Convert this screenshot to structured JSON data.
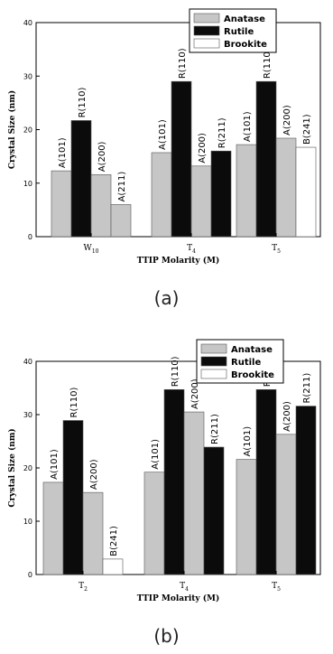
{
  "chart_data": [
    {
      "type": "bar",
      "panel_label": "(a)",
      "ylabel": "Crystal Size (nm)",
      "xlabel": "TTIP Molarity (M)",
      "ylim": [
        0,
        40
      ],
      "yticks": [
        0,
        10,
        20,
        30,
        40
      ],
      "grid": false,
      "legend_position": "top-right",
      "categories": [
        {
          "label": "W",
          "sub": "10"
        },
        {
          "label": "T",
          "sub": "4"
        },
        {
          "label": "T",
          "sub": "5"
        }
      ],
      "series": [
        {
          "name": "Anatase",
          "color": "#c6c6c6"
        },
        {
          "name": "Rutile",
          "color": "#0b0b0b"
        },
        {
          "name": "Brookite",
          "color": "#ffffff"
        }
      ],
      "bars": [
        {
          "category": 0,
          "series": 0,
          "label": "A(101)",
          "value": 12.3
        },
        {
          "category": 0,
          "series": 1,
          "label": "R(110)",
          "value": 21.7
        },
        {
          "category": 0,
          "series": 0,
          "label": "A(200)",
          "value": 11.6
        },
        {
          "category": 0,
          "series": 0,
          "label": "A(211)",
          "value": 6.0
        },
        {
          "category": 1,
          "series": 0,
          "label": "A(101)",
          "value": 15.7
        },
        {
          "category": 1,
          "series": 1,
          "label": "R(110)",
          "value": 29.0
        },
        {
          "category": 1,
          "series": 0,
          "label": "A(200)",
          "value": 13.2
        },
        {
          "category": 1,
          "series": 1,
          "label": "R(211)",
          "value": 16.0
        },
        {
          "category": 2,
          "series": 0,
          "label": "A(101)",
          "value": 17.2
        },
        {
          "category": 2,
          "series": 1,
          "label": "R(110)",
          "value": 29.0
        },
        {
          "category": 2,
          "series": 0,
          "label": "A(200)",
          "value": 18.4
        },
        {
          "category": 2,
          "series": 2,
          "label": "B(241)",
          "value": 16.7
        }
      ]
    },
    {
      "type": "bar",
      "panel_label": "(b)",
      "ylabel": "Crystal Size (nm)",
      "xlabel": "TTIP Molarity (M)",
      "ylim": [
        0,
        40
      ],
      "yticks": [
        0,
        10,
        20,
        30,
        40
      ],
      "grid": false,
      "legend_position": "top-right",
      "categories": [
        {
          "label": "T",
          "sub": "2"
        },
        {
          "label": "T",
          "sub": "4"
        },
        {
          "label": "T",
          "sub": "5"
        }
      ],
      "series": [
        {
          "name": "Anatase",
          "color": "#c6c6c6"
        },
        {
          "name": "Rutile",
          "color": "#0b0b0b"
        },
        {
          "name": "Brookite",
          "color": "#ffffff"
        }
      ],
      "bars": [
        {
          "category": 0,
          "series": 0,
          "label": "A(101)",
          "value": 17.3
        },
        {
          "category": 0,
          "series": 1,
          "label": "R(110)",
          "value": 28.9
        },
        {
          "category": 0,
          "series": 0,
          "label": "A(200)",
          "value": 15.4
        },
        {
          "category": 0,
          "series": 2,
          "label": "B(241)",
          "value": 2.9
        },
        {
          "category": 1,
          "series": 0,
          "label": "A(101)",
          "value": 19.2
        },
        {
          "category": 1,
          "series": 1,
          "label": "R(110)",
          "value": 34.7
        },
        {
          "category": 1,
          "series": 0,
          "label": "A(200)",
          "value": 30.5
        },
        {
          "category": 1,
          "series": 1,
          "label": "R(211)",
          "value": 23.9
        },
        {
          "category": 2,
          "series": 0,
          "label": "A(101)",
          "value": 21.6
        },
        {
          "category": 2,
          "series": 1,
          "label": "R(110)",
          "value": 34.7
        },
        {
          "category": 2,
          "series": 0,
          "label": "A(200)",
          "value": 26.3
        },
        {
          "category": 2,
          "series": 1,
          "label": "R(211)",
          "value": 31.6
        }
      ]
    }
  ]
}
